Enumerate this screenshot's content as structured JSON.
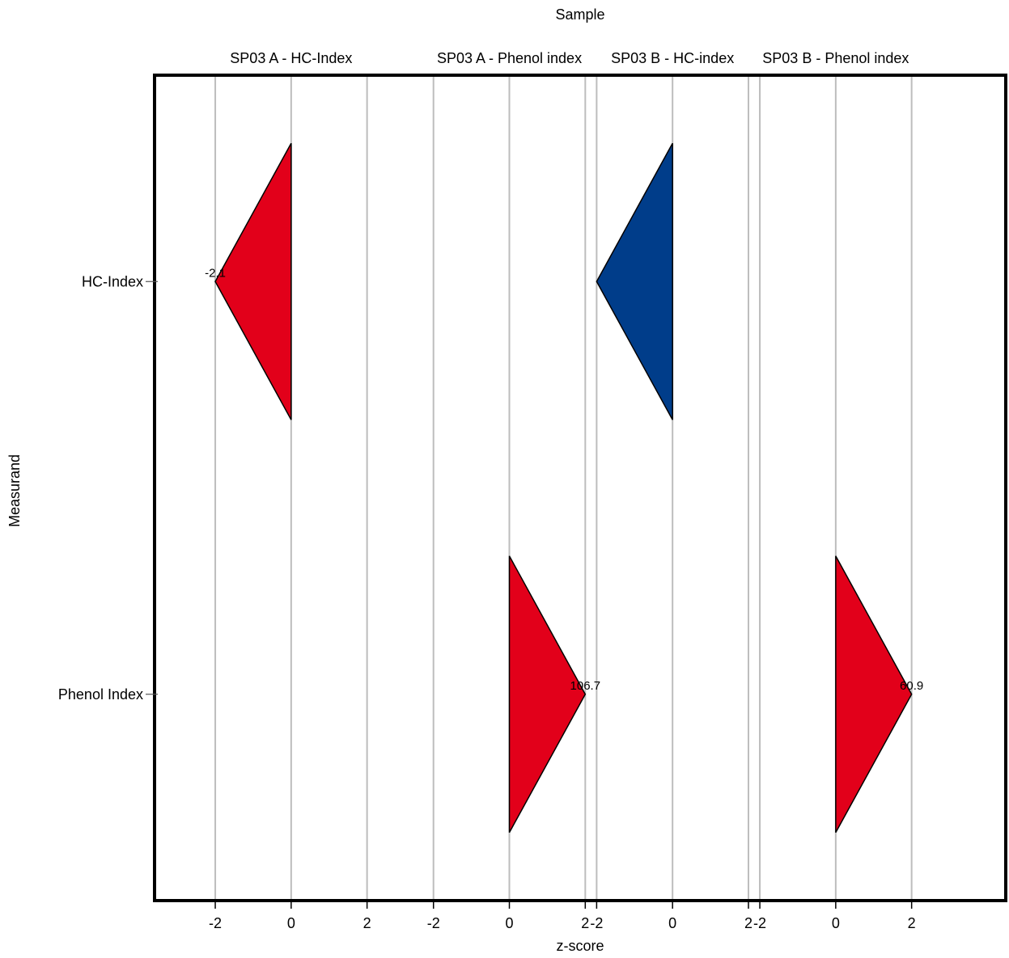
{
  "chart_data": {
    "type": "triangle-marker",
    "top_title": "Sample",
    "xlabel": "z-score",
    "ylabel": "Measurand",
    "rows": [
      "HC-Index",
      "Phenol Index"
    ],
    "panels": [
      {
        "name": "SP03 A - HC-Index",
        "xlim": [
          -3.6,
          3.6
        ],
        "ticks": [
          -2,
          0,
          2
        ]
      },
      {
        "name": "SP03 A - Phenol index",
        "xlim": [
          -2.15,
          2.15
        ],
        "ticks": [
          -2,
          0,
          2
        ]
      },
      {
        "name": "SP03 B - HC-index",
        "xlim": [
          -2.15,
          2.15
        ],
        "ticks": [
          -2,
          0,
          2
        ]
      },
      {
        "name": "SP03 B - Phenol index",
        "xlim": [
          -2.15,
          3.6
        ],
        "ticks": [
          -2,
          0,
          2
        ]
      }
    ],
    "points": [
      {
        "panel": 0,
        "row": 0,
        "z": -2,
        "label": "-2.1",
        "color": "#e2001a"
      },
      {
        "panel": 1,
        "row": 1,
        "z": 2,
        "label": "106.7",
        "color": "#e2001a"
      },
      {
        "panel": 2,
        "row": 0,
        "z": -2,
        "label": "",
        "color": "#003d8a"
      },
      {
        "panel": 3,
        "row": 1,
        "z": 2,
        "label": "60.9",
        "color": "#e2001a"
      }
    ],
    "grid": "vertical"
  }
}
